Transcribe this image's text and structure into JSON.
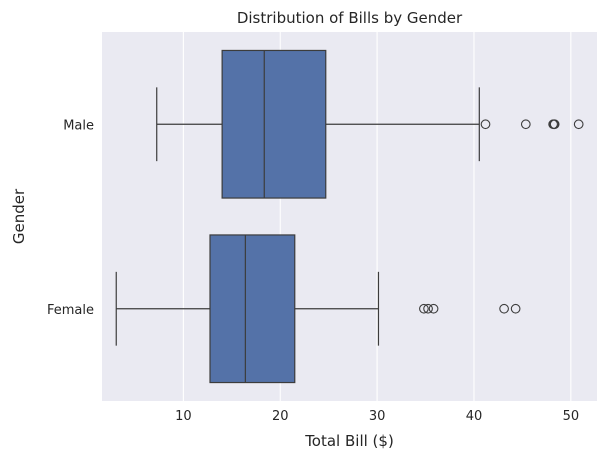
{
  "chart_data": {
    "type": "box",
    "orientation": "horizontal",
    "title": "Distribution of Bills by Gender",
    "xlabel": "Total Bill ($)",
    "ylabel": "Gender",
    "xlim": [
      1.6,
      52.7
    ],
    "xticks": [
      10,
      20,
      30,
      40,
      50
    ],
    "grid": true,
    "categories": [
      "Male",
      "Female"
    ],
    "boxes": [
      {
        "category": "Male",
        "whisker_low": 7.25,
        "q1": 14.0,
        "median": 18.35,
        "q3": 24.7,
        "whisker_high": 40.55,
        "outliers": [
          41.19,
          45.35,
          48.17,
          48.27,
          48.33,
          50.81
        ]
      },
      {
        "category": "Female",
        "whisker_low": 3.07,
        "q1": 12.75,
        "median": 16.4,
        "q3": 21.5,
        "whisker_high": 30.14,
        "outliers": [
          34.83,
          35.26,
          35.83,
          43.11,
          44.3
        ]
      }
    ],
    "colors": {
      "box": "#5472a8",
      "line": "#3c3c3c",
      "plot_bg": "#eaeaf2",
      "grid": "#ffffff"
    }
  }
}
